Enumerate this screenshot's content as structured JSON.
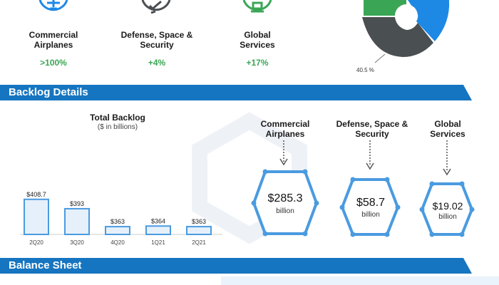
{
  "segments": [
    {
      "label_line1": "Commercial",
      "label_line2": "Airplanes",
      "change": ">100%",
      "icon": "airplane-icon"
    },
    {
      "label_line1": "Defense, Space &",
      "label_line2": "Security",
      "change": "+4%",
      "icon": "rocket-icon"
    },
    {
      "label_line1": "Global",
      "label_line2": "Services",
      "change": "+17%",
      "icon": "wrench-icon"
    }
  ],
  "pie": {
    "label": "40.5 %",
    "colors": [
      "#3aa655",
      "#1e88e5",
      "#4a4f52"
    ]
  },
  "backlog_banner": "Backlog Details",
  "balance_banner": "Balance Sheet",
  "colors": {
    "banner": "#1675c0",
    "bar_fill": "#e6f0fa",
    "bar_stroke": "#4a9be0",
    "hex_stroke": "#4a9be0"
  },
  "chart_data": {
    "type": "bar",
    "title": "Total Backlog",
    "subtitle": "($ in billions)",
    "categories": [
      "2Q20",
      "3Q20",
      "4Q20",
      "1Q21",
      "2Q21"
    ],
    "values": [
      408.7,
      393,
      363,
      364,
      363
    ],
    "value_labels": [
      "$408.7",
      "$393",
      "$363",
      "$364",
      "$363"
    ],
    "ylim": [
      350,
      412
    ]
  },
  "backlog_segments": [
    {
      "name_line1": "Commercial",
      "name_line2": "Airplanes",
      "value": "$285.3",
      "unit": "billion"
    },
    {
      "name_line1": "Defense, Space &",
      "name_line2": "Security",
      "value": "$58.7",
      "unit": "billion"
    },
    {
      "name_line1": "Global",
      "name_line2": "Services",
      "value": "$19.02",
      "unit": "billion"
    }
  ]
}
